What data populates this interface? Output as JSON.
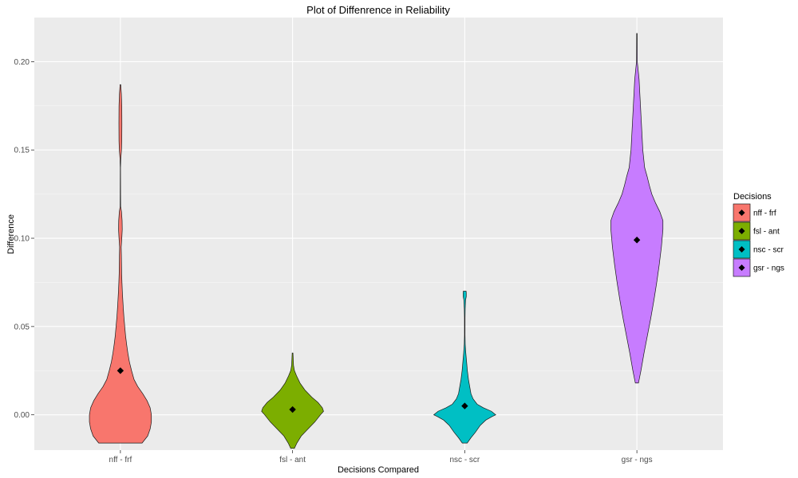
{
  "chart_data": {
    "type": "violin",
    "title": "Plot of Diffenrence in Reliability",
    "xlabel": "Decisions Compared",
    "ylabel": "Difference",
    "ylim": [
      -0.02,
      0.225
    ],
    "y_ticks": [
      0.0,
      0.05,
      0.1,
      0.15,
      0.2
    ],
    "y_tick_labels": [
      "0.00",
      "0.05",
      "0.10",
      "0.15",
      "0.20"
    ],
    "grid": true,
    "background": "#ebebeb",
    "legend": {
      "title": "Decisions",
      "placement": "right",
      "entries": [
        "nff - frf",
        "fsl - ant",
        "nsc - scr",
        "gsr - ngs"
      ]
    },
    "mean_marker": "diamond",
    "series": [
      {
        "name": "nff - frf",
        "color": "#F8766D",
        "mean": 0.025,
        "profile": [
          [
            -0.016,
            0.7
          ],
          [
            -0.012,
            0.88
          ],
          [
            -0.008,
            0.96
          ],
          [
            -0.004,
            1.0
          ],
          [
            0.0,
            1.0
          ],
          [
            0.004,
            0.96
          ],
          [
            0.008,
            0.86
          ],
          [
            0.012,
            0.72
          ],
          [
            0.016,
            0.56
          ],
          [
            0.02,
            0.44
          ],
          [
            0.025,
            0.36
          ],
          [
            0.03,
            0.29
          ],
          [
            0.035,
            0.24
          ],
          [
            0.04,
            0.2
          ],
          [
            0.045,
            0.165
          ],
          [
            0.05,
            0.14
          ],
          [
            0.055,
            0.115
          ],
          [
            0.06,
            0.095
          ],
          [
            0.065,
            0.078
          ],
          [
            0.07,
            0.062
          ],
          [
            0.075,
            0.05
          ],
          [
            0.08,
            0.04
          ],
          [
            0.09,
            0.032
          ],
          [
            0.095,
            0.026
          ],
          [
            0.1,
            0.045
          ],
          [
            0.105,
            0.06
          ],
          [
            0.11,
            0.055
          ],
          [
            0.115,
            0.035
          ],
          [
            0.118,
            0.008
          ],
          [
            0.125,
            0.006
          ],
          [
            0.14,
            0.004
          ],
          [
            0.145,
            0.012
          ],
          [
            0.15,
            0.035
          ],
          [
            0.155,
            0.045
          ],
          [
            0.165,
            0.048
          ],
          [
            0.175,
            0.045
          ],
          [
            0.182,
            0.03
          ],
          [
            0.187,
            0.01
          ]
        ]
      },
      {
        "name": "fsl - ant",
        "color": "#7CAE00",
        "mean": 0.003,
        "profile": [
          [
            -0.019,
            0.06
          ],
          [
            -0.016,
            0.14
          ],
          [
            -0.012,
            0.28
          ],
          [
            -0.008,
            0.5
          ],
          [
            -0.004,
            0.72
          ],
          [
            0.0,
            0.9
          ],
          [
            0.002,
            1.0
          ],
          [
            0.004,
            0.96
          ],
          [
            0.007,
            0.82
          ],
          [
            0.01,
            0.62
          ],
          [
            0.014,
            0.4
          ],
          [
            0.018,
            0.24
          ],
          [
            0.022,
            0.13
          ],
          [
            0.025,
            0.06
          ],
          [
            0.028,
            0.03
          ],
          [
            0.032,
            0.02
          ],
          [
            0.035,
            0.012
          ]
        ]
      },
      {
        "name": "nsc - scr",
        "color": "#00BFC4",
        "mean": 0.005,
        "profile": [
          [
            -0.016,
            0.08
          ],
          [
            -0.013,
            0.2
          ],
          [
            -0.01,
            0.34
          ],
          [
            -0.006,
            0.5
          ],
          [
            -0.003,
            0.68
          ],
          [
            -0.001,
            0.88
          ],
          [
            0.0,
            1.0
          ],
          [
            0.002,
            0.86
          ],
          [
            0.004,
            0.6
          ],
          [
            0.006,
            0.4
          ],
          [
            0.009,
            0.27
          ],
          [
            0.012,
            0.2
          ],
          [
            0.016,
            0.16
          ],
          [
            0.02,
            0.12
          ],
          [
            0.025,
            0.085
          ],
          [
            0.03,
            0.06
          ],
          [
            0.035,
            0.035
          ],
          [
            0.04,
            0.015
          ],
          [
            0.045,
            0.008
          ],
          [
            0.055,
            0.009
          ],
          [
            0.06,
            0.014
          ],
          [
            0.065,
            0.028
          ],
          [
            0.067,
            0.05
          ],
          [
            0.069,
            0.05
          ],
          [
            0.07,
            0.045
          ]
        ]
      },
      {
        "name": "gsr - ngs",
        "color": "#C77CFF",
        "mean": 0.099,
        "profile": [
          [
            0.018,
            0.05
          ],
          [
            0.025,
            0.13
          ],
          [
            0.035,
            0.23
          ],
          [
            0.045,
            0.34
          ],
          [
            0.055,
            0.45
          ],
          [
            0.065,
            0.55
          ],
          [
            0.075,
            0.64
          ],
          [
            0.085,
            0.72
          ],
          [
            0.095,
            0.79
          ],
          [
            0.105,
            0.84
          ],
          [
            0.11,
            0.84
          ],
          [
            0.115,
            0.74
          ],
          [
            0.12,
            0.6
          ],
          [
            0.125,
            0.48
          ],
          [
            0.13,
            0.4
          ],
          [
            0.135,
            0.33
          ],
          [
            0.14,
            0.25
          ],
          [
            0.15,
            0.19
          ],
          [
            0.16,
            0.16
          ],
          [
            0.17,
            0.13
          ],
          [
            0.18,
            0.1
          ],
          [
            0.19,
            0.07
          ],
          [
            0.197,
            0.03
          ],
          [
            0.2,
            0.012
          ],
          [
            0.216,
            0.008
          ]
        ]
      }
    ]
  }
}
